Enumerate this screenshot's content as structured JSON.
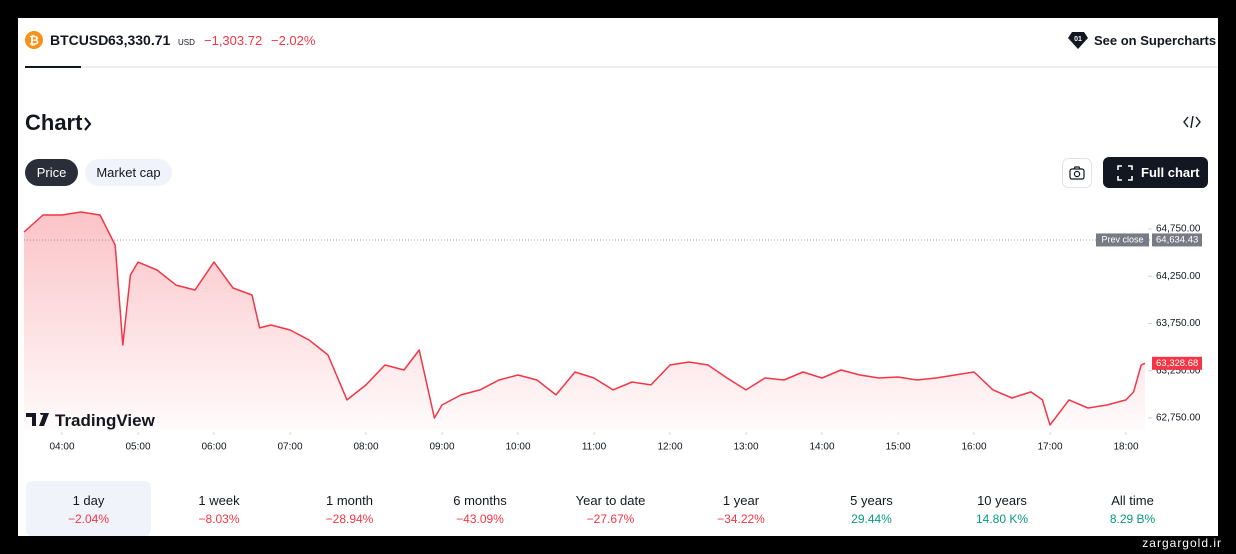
{
  "header": {
    "symbol": "BTCUSD",
    "price": "63,330.71",
    "currency": "USD",
    "change": "−1,303.72",
    "change_percent": "−2.02%",
    "link": "See on Supercharts"
  },
  "section_title": "Chart",
  "tabs": [
    "Price",
    "Market cap"
  ],
  "full_chart_button": "Full chart",
  "watermark": "TradingView",
  "chart_data": {
    "type": "line",
    "color": "#f23645",
    "x": [
      3.5,
      3.75,
      4.0,
      4.25,
      4.5,
      4.7,
      4.8,
      4.9,
      5.0,
      5.25,
      5.5,
      5.75,
      6.0,
      6.25,
      6.5,
      6.6,
      6.75,
      7.0,
      7.25,
      7.5,
      7.75,
      8.0,
      8.25,
      8.5,
      8.7,
      8.9,
      9.0,
      9.25,
      9.5,
      9.75,
      10.0,
      10.25,
      10.5,
      10.75,
      11.0,
      11.25,
      11.5,
      11.75,
      12.0,
      12.25,
      12.5,
      12.75,
      13.0,
      13.25,
      13.5,
      13.75,
      14.0,
      14.25,
      14.5,
      14.75,
      15.0,
      15.25,
      15.5,
      15.75,
      16.0,
      16.25,
      16.5,
      16.75,
      16.9,
      17.0,
      17.25,
      17.5,
      17.75,
      18.0,
      18.1,
      18.2,
      18.25
    ],
    "values": [
      64718,
      64898,
      64898,
      64930,
      64898,
      64580,
      63523,
      64263,
      64400,
      64316,
      64157,
      64105,
      64400,
      64126,
      64052,
      63703,
      63734,
      63681,
      63576,
      63417,
      62941,
      63100,
      63311,
      63258,
      63470,
      62750,
      62888,
      62994,
      63047,
      63152,
      63205,
      63152,
      62994,
      63237,
      63173,
      63047,
      63131,
      63100,
      63311,
      63343,
      63311,
      63173,
      63047,
      63173,
      63152,
      63237,
      63173,
      63258,
      63205,
      63173,
      63184,
      63152,
      63173,
      63205,
      63237,
      63047,
      62962,
      63026,
      62941,
      62676,
      62941,
      62856,
      62888,
      62941,
      63026,
      63311,
      63328.68
    ],
    "xlim": [
      3.5,
      18.25
    ],
    "xticks": [
      {
        "value": 4,
        "label": "04:00"
      },
      {
        "value": 5,
        "label": "05:00"
      },
      {
        "value": 6,
        "label": "06:00"
      },
      {
        "value": 7,
        "label": "07:00"
      },
      {
        "value": 8,
        "label": "08:00"
      },
      {
        "value": 9,
        "label": "09:00"
      },
      {
        "value": 10,
        "label": "10:00"
      },
      {
        "value": 11,
        "label": "11:00"
      },
      {
        "value": 12,
        "label": "12:00"
      },
      {
        "value": 13,
        "label": "13:00"
      },
      {
        "value": 14,
        "label": "14:00"
      },
      {
        "value": 15,
        "label": "15:00"
      },
      {
        "value": 16,
        "label": "16:00"
      },
      {
        "value": 17,
        "label": "17:00"
      },
      {
        "value": 18,
        "label": "18:00"
      }
    ],
    "ylim": [
      62625,
      65000
    ],
    "yticks": [
      {
        "value": 62750,
        "label": "62,750.00"
      },
      {
        "value": 63250,
        "label": "63,250.00"
      },
      {
        "value": 63750,
        "label": "63,750.00"
      },
      {
        "value": 64250,
        "label": "64,250.00"
      },
      {
        "value": 64750,
        "label": "64,750.00"
      }
    ],
    "prev_close": {
      "name": "Prev close",
      "value": 64634.43,
      "label": "64,634.43"
    },
    "last_price": {
      "value": 63328.68,
      "label": "63,328.68"
    }
  },
  "periods": [
    {
      "name": "1 day",
      "change": "−2.04%",
      "color": "#f23645"
    },
    {
      "name": "1 week",
      "change": "−8.03%",
      "color": "#f23645"
    },
    {
      "name": "1 month",
      "change": "−28.94%",
      "color": "#f23645"
    },
    {
      "name": "6 months",
      "change": "−43.09%",
      "color": "#f23645"
    },
    {
      "name": "Year to date",
      "change": "−27.67%",
      "color": "#f23645"
    },
    {
      "name": "1 year",
      "change": "−34.22%",
      "color": "#f23645"
    },
    {
      "name": "5 years",
      "change": "29.44%",
      "color": "#089981"
    },
    {
      "name": "10 years",
      "change": "14.80 K%",
      "color": "#089981"
    },
    {
      "name": "All time",
      "change": "8.29 B%",
      "color": "#089981"
    }
  ],
  "site": "zargargold.ir"
}
